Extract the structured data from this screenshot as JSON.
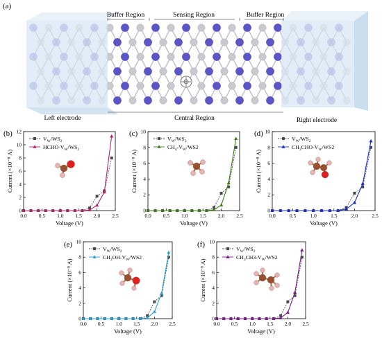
{
  "panel_a": {
    "tag": "(a)",
    "region_labels": {
      "buffer_left": "Buffer Region",
      "sensing": "Sensing Region",
      "buffer_right": "Buffer Region",
      "left_electrode": "Left electrode",
      "central": "Central Region",
      "right_electrode": "Right electrode"
    }
  },
  "colors": {
    "reference_series": "#4a4a4a",
    "hcho": "#b0226a",
    "ch4": "#3e7a1a",
    "ch3cho": "#1a2ec8",
    "ch3oh": "#2a9fd0",
    "ch3ch3": "#7a1a8c",
    "tungsten_atom": "#5b55c8",
    "sulfur_atom": "#c9c9cf",
    "carbon_atom": "#9a4f2e",
    "hydrogen_atom": "#e8b4b4",
    "oxygen_atom": "#e02020",
    "electrode_box": "#d6e6f4"
  },
  "chart_data": [
    {
      "id": "b",
      "tag": "(b)",
      "type": "line",
      "xlabel": "Voltage (V)",
      "ylabel": "Current (×10⁻⁸ A)",
      "xlim": [
        0,
        2.5
      ],
      "ylim": [
        0,
        12
      ],
      "xticks": [
        "0.0",
        "0.5",
        "1.0",
        "1.5",
        "2.0",
        "2.5"
      ],
      "yticks": [
        "0",
        "2",
        "4",
        "6",
        "8",
        "10",
        "12"
      ],
      "molecule": "hcho",
      "series": [
        {
          "name": "VW/WS2",
          "sub": [
            "V",
            "W",
            "/WS",
            "2",
            ""
          ],
          "marker": "square",
          "dash": true,
          "x": [
            0,
            0.2,
            0.4,
            0.6,
            0.8,
            1.0,
            1.2,
            1.4,
            1.6,
            1.8,
            2.0,
            2.2,
            2.4
          ],
          "y": [
            0,
            0,
            0,
            0,
            0,
            0,
            0,
            0,
            0,
            0.4,
            2.2,
            3.0,
            8.0
          ]
        },
        {
          "name": "HCHO-VW/WS2",
          "sub": [
            "HCHO-V",
            "W",
            "/WS",
            "2",
            ""
          ],
          "marker": "triangle",
          "dash": false,
          "x": [
            0,
            0.2,
            0.4,
            0.6,
            0.8,
            1.0,
            1.2,
            1.4,
            1.6,
            1.8,
            2.0,
            2.2,
            2.4
          ],
          "y": [
            0,
            0,
            0,
            0,
            0,
            0,
            0,
            0,
            0,
            0.1,
            0.8,
            2.8,
            11.3
          ]
        }
      ]
    },
    {
      "id": "c",
      "tag": "(c)",
      "type": "line",
      "xlabel": "Voltage (V)",
      "ylabel": "Current (×10⁻⁸ A)",
      "xlim": [
        0,
        2.5
      ],
      "ylim": [
        0,
        10
      ],
      "xticks": [
        "0.0",
        "0.5",
        "1.0",
        "1.5",
        "2.0",
        "2.5"
      ],
      "yticks": [
        "0",
        "2",
        "4",
        "6",
        "8",
        "10"
      ],
      "molecule": "ch4",
      "series": [
        {
          "name": "VW/WS2",
          "sub": [
            "V",
            "W",
            "/WS",
            "2",
            ""
          ],
          "marker": "square",
          "dash": true,
          "x": [
            0,
            0.2,
            0.4,
            0.6,
            0.8,
            1.0,
            1.2,
            1.4,
            1.6,
            1.8,
            2.0,
            2.2,
            2.4
          ],
          "y": [
            0,
            0,
            0,
            0,
            0,
            0,
            0,
            0,
            0,
            0.4,
            2.2,
            3.0,
            8.0
          ]
        },
        {
          "name": "CH4-VW/WS2",
          "sub": [
            "CH",
            "4",
            "-V",
            "W",
            "/WS2"
          ],
          "marker": "triangle",
          "dash": false,
          "x": [
            0,
            0.2,
            0.4,
            0.6,
            0.8,
            1.0,
            1.2,
            1.4,
            1.6,
            1.8,
            2.0,
            2.2,
            2.4
          ],
          "y": [
            0,
            0,
            0,
            0,
            0,
            0,
            0,
            0,
            0,
            0.1,
            0.7,
            3.5,
            9.1
          ]
        }
      ]
    },
    {
      "id": "d",
      "tag": "(d)",
      "type": "line",
      "xlabel": "Voltage (V)",
      "ylabel": "Current (×10⁻⁸ A)",
      "xlim": [
        0,
        2.5
      ],
      "ylim": [
        0,
        10
      ],
      "xticks": [
        "0.0",
        "0.5",
        "1.0",
        "1.5",
        "2.0",
        "2.5"
      ],
      "yticks": [
        "0",
        "2",
        "4",
        "6",
        "8",
        "10"
      ],
      "molecule": "ch3cho",
      "series": [
        {
          "name": "VW/WS2",
          "sub": [
            "V",
            "W",
            "/WS",
            "2",
            ""
          ],
          "marker": "square",
          "dash": true,
          "x": [
            0,
            0.2,
            0.4,
            0.6,
            0.8,
            1.0,
            1.2,
            1.4,
            1.6,
            1.8,
            2.0,
            2.2,
            2.4
          ],
          "y": [
            0,
            0,
            0,
            0,
            0,
            0,
            0,
            0,
            0,
            0.4,
            2.2,
            3.0,
            8.0
          ]
        },
        {
          "name": "CH3CHO-VW/WS2",
          "sub": [
            "CH",
            "3",
            "CHO-V",
            "W",
            "/WS2"
          ],
          "marker": "triangle",
          "dash": false,
          "x": [
            0,
            0.2,
            0.4,
            0.6,
            0.8,
            1.0,
            1.2,
            1.4,
            1.6,
            1.8,
            2.0,
            2.2,
            2.4
          ],
          "y": [
            0,
            0,
            0,
            0,
            0,
            0,
            0,
            0,
            0,
            0.2,
            1.0,
            3.4,
            8.8
          ]
        }
      ]
    },
    {
      "id": "e",
      "tag": "(e)",
      "type": "line",
      "xlabel": "Voltage (V)",
      "ylabel": "Current (×10⁻⁸ A)",
      "xlim": [
        0,
        2.5
      ],
      "ylim": [
        0,
        10
      ],
      "xticks": [
        "0.0",
        "0.5",
        "1.0",
        "1.5",
        "2.0",
        "2.5"
      ],
      "yticks": [
        "0",
        "2",
        "4",
        "6",
        "8",
        "10"
      ],
      "molecule": "ch3oh",
      "series": [
        {
          "name": "VW/WS2",
          "sub": [
            "V",
            "W",
            "/WS",
            "2",
            ""
          ],
          "marker": "square",
          "dash": true,
          "x": [
            0,
            0.2,
            0.4,
            0.6,
            0.8,
            1.0,
            1.2,
            1.4,
            1.6,
            1.8,
            2.0,
            2.2,
            2.4
          ],
          "y": [
            0,
            0,
            0,
            0,
            0,
            0,
            0,
            0,
            0,
            0.4,
            2.2,
            3.0,
            8.0
          ]
        },
        {
          "name": "CH3OH-VW/WS2",
          "sub": [
            "CH",
            "3",
            "OH-V",
            "W",
            "/WS2"
          ],
          "marker": "triangle",
          "dash": false,
          "x": [
            0,
            0.2,
            0.4,
            0.6,
            0.8,
            1.0,
            1.2,
            1.4,
            1.6,
            1.8,
            2.0,
            2.2,
            2.4
          ],
          "y": [
            0,
            0,
            0,
            0,
            0,
            0,
            0,
            0,
            0,
            0.1,
            0.9,
            3.3,
            8.6
          ]
        }
      ]
    },
    {
      "id": "f",
      "tag": "(f)",
      "type": "line",
      "xlabel": "Voltage (V)",
      "ylabel": "Current (×10⁻⁸ A)",
      "xlim": [
        0,
        2.5
      ],
      "ylim": [
        0,
        10
      ],
      "xticks": [
        "0.0",
        "0.5",
        "1.0",
        "1.5",
        "2.0",
        "2.5"
      ],
      "yticks": [
        "0",
        "2",
        "4",
        "6",
        "8",
        "10"
      ],
      "molecule": "ch3ch3",
      "series": [
        {
          "name": "VW/WS2",
          "sub": [
            "V",
            "W",
            "/WS",
            "2",
            ""
          ],
          "marker": "square",
          "dash": true,
          "x": [
            0,
            0.2,
            0.4,
            0.6,
            0.8,
            1.0,
            1.2,
            1.4,
            1.6,
            1.8,
            2.0,
            2.2,
            2.4
          ],
          "y": [
            0,
            0,
            0,
            0,
            0,
            0,
            0,
            0,
            0,
            0.4,
            2.2,
            3.0,
            8.0
          ]
        },
        {
          "name": "CH3CH3-VW/WS2",
          "sub": [
            "CH",
            "3",
            "CH3-V",
            "W",
            "/WS2"
          ],
          "marker": "triangle",
          "dash": false,
          "x": [
            0,
            0.2,
            0.4,
            0.6,
            0.8,
            1.0,
            1.2,
            1.4,
            1.6,
            1.8,
            2.0,
            2.2,
            2.4
          ],
          "y": [
            0,
            0,
            0,
            0,
            0,
            0,
            0,
            0,
            0,
            0.1,
            0.8,
            3.4,
            8.9
          ]
        }
      ]
    }
  ]
}
